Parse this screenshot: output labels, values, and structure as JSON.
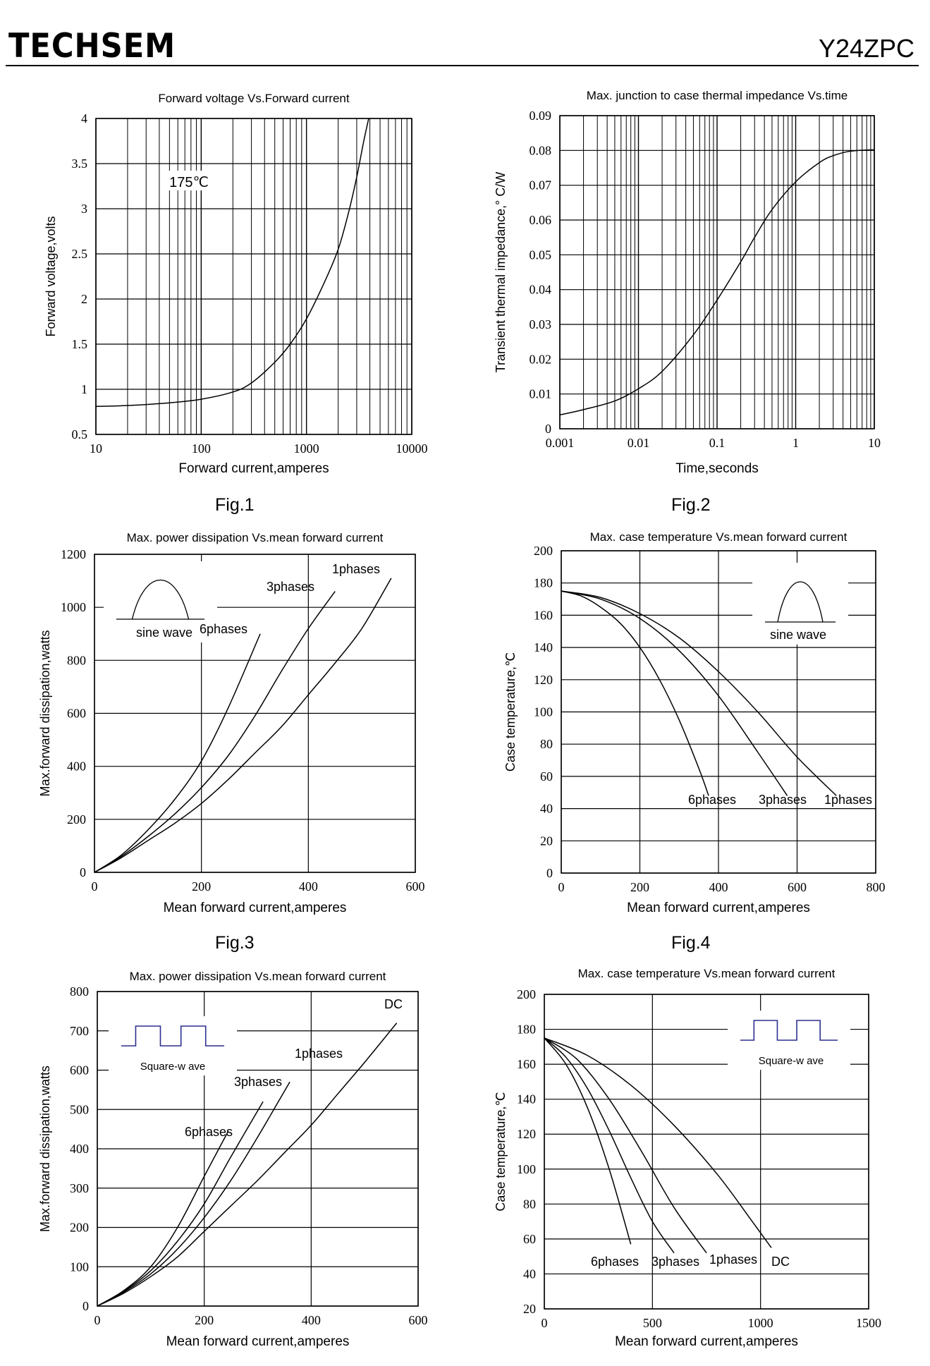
{
  "header": {
    "brand": "TECHSEM",
    "model": "Y24ZPC"
  },
  "figures": {
    "fig1": "Fig.1",
    "fig2": "Fig.2",
    "fig3": "Fig.3",
    "fig4": "Fig.4"
  },
  "chart_data": [
    {
      "id": "fig1",
      "type": "line",
      "title": "Forward  voltage  Vs.Forward  current",
      "xlabel": "Forward  current,amperes",
      "ylabel": "Forward  voltage,volts",
      "x_scale": "log",
      "xlim": [
        10,
        10000
      ],
      "ylim": [
        0.5,
        4
      ],
      "x_ticks": [
        "10",
        "100",
        "1000",
        "10000"
      ],
      "y_ticks": [
        "0.5",
        "1",
        "1.5",
        "2",
        "2.5",
        "3",
        "3.5",
        "4"
      ],
      "annotations": [
        "175℃"
      ],
      "series": [
        {
          "points": [
            [
              10,
              0.81
            ],
            [
              20,
              0.82
            ],
            [
              50,
              0.85
            ],
            [
              100,
              0.89
            ],
            [
              200,
              0.97
            ],
            [
              300,
              1.07
            ],
            [
              500,
              1.3
            ],
            [
              700,
              1.5
            ],
            [
              1000,
              1.78
            ],
            [
              1500,
              2.2
            ],
            [
              2000,
              2.55
            ],
            [
              2500,
              2.95
            ],
            [
              3000,
              3.35
            ],
            [
              3500,
              3.75
            ],
            [
              3900,
              4.0
            ]
          ]
        }
      ]
    },
    {
      "id": "fig2",
      "type": "line",
      "title": "Max. junction  to  case  thermal  impedance  Vs.time",
      "xlabel": "Time,seconds",
      "ylabel": "Transient  thermal  impedance,°  C/W",
      "x_scale": "log",
      "xlim": [
        0.001,
        10
      ],
      "ylim": [
        0,
        0.09
      ],
      "x_ticks": [
        "0.001",
        "0.01",
        "0.1",
        "1",
        "10"
      ],
      "y_ticks": [
        "0",
        "0.01",
        "0.02",
        "0.03",
        "0.04",
        "0.05",
        "0.06",
        "0.07",
        "0.08",
        "0.09"
      ],
      "series": [
        {
          "points": [
            [
              0.001,
              0.004
            ],
            [
              0.002,
              0.0055
            ],
            [
              0.005,
              0.008
            ],
            [
              0.01,
              0.0115
            ],
            [
              0.02,
              0.0165
            ],
            [
              0.05,
              0.027
            ],
            [
              0.1,
              0.037
            ],
            [
              0.2,
              0.048
            ],
            [
              0.3,
              0.055
            ],
            [
              0.5,
              0.063
            ],
            [
              1,
              0.071
            ],
            [
              2,
              0.0765
            ],
            [
              3,
              0.0785
            ],
            [
              5,
              0.0798
            ],
            [
              10,
              0.0802
            ]
          ]
        }
      ]
    },
    {
      "id": "fig3",
      "type": "line",
      "title": "Max.  power  dissipation   Vs.mean  forward  current",
      "xlabel": "Mean  forward   current,amperes",
      "ylabel": "Max.forward  dissipation,watts",
      "xlim": [
        0,
        600
      ],
      "ylim": [
        0,
        1200
      ],
      "x_ticks": [
        "0",
        "200",
        "400",
        "600"
      ],
      "y_ticks": [
        "0",
        "200",
        "400",
        "600",
        "800",
        "1000",
        "1200"
      ],
      "inset_label": "sine wave",
      "series": [
        {
          "name": "6phases",
          "points": [
            [
              0,
              0
            ],
            [
              50,
              65
            ],
            [
              100,
              160
            ],
            [
              150,
              275
            ],
            [
              200,
              420
            ],
            [
              250,
              620
            ],
            [
              310,
              900
            ]
          ]
        },
        {
          "name": "3phases",
          "points": [
            [
              0,
              0
            ],
            [
              50,
              60
            ],
            [
              100,
              135
            ],
            [
              150,
              220
            ],
            [
              200,
              320
            ],
            [
              250,
              440
            ],
            [
              300,
              590
            ],
            [
              350,
              760
            ],
            [
              400,
              920
            ],
            [
              450,
              1060
            ]
          ]
        },
        {
          "name": "1phases",
          "points": [
            [
              0,
              0
            ],
            [
              50,
              55
            ],
            [
              100,
              120
            ],
            [
              150,
              185
            ],
            [
              200,
              260
            ],
            [
              250,
              350
            ],
            [
              300,
              450
            ],
            [
              350,
              550
            ],
            [
              400,
              670
            ],
            [
              450,
              790
            ],
            [
              500,
              920
            ],
            [
              555,
              1110
            ]
          ]
        }
      ]
    },
    {
      "id": "fig4",
      "type": "line",
      "title": "Max.  case  temperature   Vs.mean  forward  current",
      "xlabel": "Mean  forward   current,amperes",
      "ylabel": "Case temperature,℃",
      "xlim": [
        0,
        800
      ],
      "ylim": [
        0,
        200
      ],
      "x_ticks": [
        "0",
        "200",
        "400",
        "600",
        "800"
      ],
      "y_ticks": [
        "0",
        "20",
        "40",
        "60",
        "80",
        "100",
        "120",
        "140",
        "160",
        "180",
        "200"
      ],
      "inset_label": "sine wave",
      "series": [
        {
          "name": "6phases",
          "points": [
            [
              0,
              175
            ],
            [
              50,
              172
            ],
            [
              100,
              165
            ],
            [
              150,
              155
            ],
            [
              200,
              140
            ],
            [
              250,
              120
            ],
            [
              300,
              95
            ],
            [
              350,
              65
            ],
            [
              375,
              48
            ]
          ]
        },
        {
          "name": "3phases",
          "points": [
            [
              0,
              175
            ],
            [
              100,
              170
            ],
            [
              200,
              158
            ],
            [
              300,
              138
            ],
            [
              400,
              110
            ],
            [
              500,
              75
            ],
            [
              575,
              48
            ]
          ]
        },
        {
          "name": "1phases",
          "points": [
            [
              0,
              175
            ],
            [
              100,
              171
            ],
            [
              200,
              161
            ],
            [
              300,
              146
            ],
            [
              400,
              125
            ],
            [
              500,
              100
            ],
            [
              600,
              72
            ],
            [
              700,
              48
            ]
          ]
        }
      ]
    },
    {
      "id": "fig5",
      "type": "line",
      "title": "Max.  power  dissipation   Vs.mean  forward  current",
      "xlabel": "Mean  forward   current,amperes",
      "ylabel": "Max.forward  dissipation,watts",
      "xlim": [
        0,
        600
      ],
      "ylim": [
        0,
        800
      ],
      "x_ticks": [
        "0",
        "200",
        "400",
        "600"
      ],
      "y_ticks": [
        "0",
        "100",
        "200",
        "300",
        "400",
        "500",
        "600",
        "700",
        "800"
      ],
      "inset_label": "Square-w ave",
      "series": [
        {
          "name": "6phases",
          "points": [
            [
              0,
              0
            ],
            [
              50,
              40
            ],
            [
              100,
              100
            ],
            [
              150,
              200
            ],
            [
              200,
              330
            ],
            [
              245,
              445
            ]
          ]
        },
        {
          "name": "3phases",
          "points": [
            [
              0,
              0
            ],
            [
              50,
              38
            ],
            [
              100,
              90
            ],
            [
              150,
              165
            ],
            [
              200,
              260
            ],
            [
              250,
              380
            ],
            [
              310,
              520
            ]
          ]
        },
        {
          "name": "1phases",
          "points": [
            [
              0,
              0
            ],
            [
              50,
              36
            ],
            [
              100,
              82
            ],
            [
              150,
              145
            ],
            [
              200,
              225
            ],
            [
              250,
              320
            ],
            [
              300,
              430
            ],
            [
              360,
              570
            ]
          ]
        },
        {
          "name": "DC",
          "points": [
            [
              0,
              0
            ],
            [
              50,
              33
            ],
            [
              100,
              75
            ],
            [
              150,
              125
            ],
            [
              200,
              190
            ],
            [
              250,
              255
            ],
            [
              300,
              320
            ],
            [
              350,
              390
            ],
            [
              400,
              460
            ],
            [
              450,
              540
            ],
            [
              500,
              620
            ],
            [
              560,
              720
            ]
          ]
        }
      ]
    },
    {
      "id": "fig6",
      "type": "line",
      "title": "Max.  case  temperature   Vs.mean  forward  current",
      "xlabel": "Mean  forward   current,amperes",
      "ylabel": "Case temperature,℃",
      "xlim": [
        0,
        1500
      ],
      "ylim": [
        20,
        200
      ],
      "x_ticks": [
        "0",
        "500",
        "1000",
        "1500"
      ],
      "y_ticks": [
        "20",
        "40",
        "60",
        "80",
        "100",
        "120",
        "140",
        "160",
        "180",
        "200"
      ],
      "inset_label": "Square-w ave",
      "series": [
        {
          "name": "6phases",
          "points": [
            [
              0,
              175
            ],
            [
              100,
              160
            ],
            [
              200,
              135
            ],
            [
              300,
              100
            ],
            [
              400,
              57
            ]
          ]
        },
        {
          "name": "3phases",
          "points": [
            [
              0,
              175
            ],
            [
              100,
              164
            ],
            [
              200,
              146
            ],
            [
              300,
              122
            ],
            [
              400,
              95
            ],
            [
              500,
              70
            ],
            [
              600,
              52
            ]
          ]
        },
        {
          "name": "1phases",
          "points": [
            [
              0,
              175
            ],
            [
              150,
              163
            ],
            [
              300,
              140
            ],
            [
              450,
              110
            ],
            [
              600,
              78
            ],
            [
              750,
              52
            ]
          ]
        },
        {
          "name": "DC",
          "points": [
            [
              0,
              175
            ],
            [
              200,
              165
            ],
            [
              400,
              148
            ],
            [
              600,
              125
            ],
            [
              800,
              97
            ],
            [
              950,
              72
            ],
            [
              1050,
              55
            ]
          ]
        }
      ]
    }
  ]
}
